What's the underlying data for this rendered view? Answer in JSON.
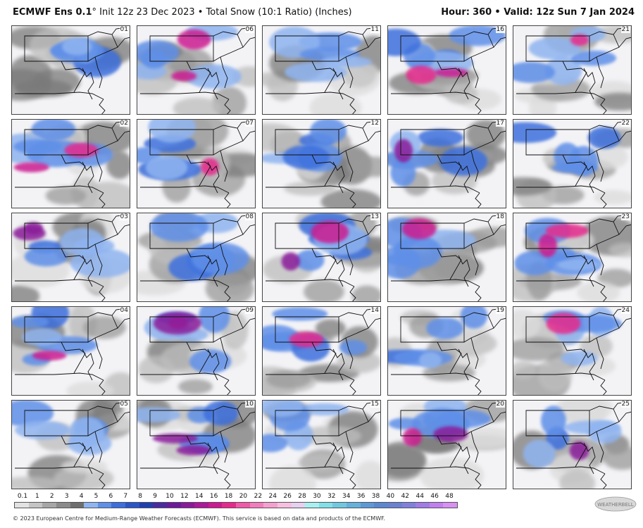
{
  "header": {
    "model": "ECMWF Ens 0.1",
    "degree": "°",
    "subtitle": "Init 12z 23 Dec 2023 • Total Snow (10:1 Ratio) (Inches)",
    "hour_label": "Hour:",
    "hour_value": "360",
    "valid_text": "• Valid: 12z Sun 7 Jan 2024"
  },
  "members": [
    [
      "01",
      "06",
      "11",
      "16",
      "21"
    ],
    [
      "02",
      "07",
      "12",
      "17",
      "22"
    ],
    [
      "03",
      "08",
      "13",
      "18",
      "23"
    ],
    [
      "04",
      "09",
      "14",
      "19",
      "24"
    ],
    [
      "05",
      "10",
      "15",
      "20",
      "25"
    ]
  ],
  "scale": {
    "ticks": [
      "0.1",
      "1",
      "2",
      "3",
      "4",
      "5",
      "6",
      "7",
      "8",
      "9",
      "10",
      "12",
      "14",
      "16",
      "18",
      "20",
      "22",
      "24",
      "26",
      "28",
      "30",
      "32",
      "34",
      "36",
      "38",
      "40",
      "42",
      "44",
      "46",
      "48"
    ],
    "colors": [
      "#e2e2e2",
      "#c4c4c4",
      "#a6a6a6",
      "#8a8a8a",
      "#6e6e6e",
      "#8fb4f0",
      "#5f8fe8",
      "#3c6fdd",
      "#2a55c8",
      "#1f3fb0",
      "#4a2aa0",
      "#6a1a9a",
      "#8a1a9a",
      "#aa1a9a",
      "#cc1a90",
      "#e62a8c",
      "#f05aa8",
      "#f27dbd",
      "#f4a0cf",
      "#f6bfe0",
      "#e6d0f0",
      "#a8f0f0",
      "#80e0e8",
      "#70c8e0",
      "#66b0dc",
      "#5c98d6",
      "#5a88d0",
      "#6a80d0",
      "#8080dc",
      "#a07ce6",
      "#c080ee",
      "#d890f2"
    ]
  },
  "footer": {
    "text": "© 2023 European Centre for Medium-Range Weather Forecasts (ECMWF). This service is based on data and products of the ECMWF."
  },
  "logo": {
    "text": "WEATHERBELL"
  }
}
